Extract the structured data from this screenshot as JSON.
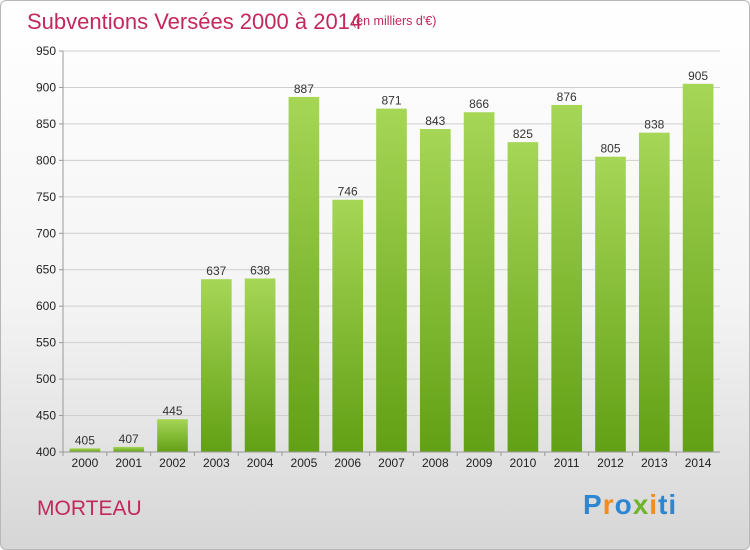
{
  "title": "Subventions Versées 2000 à 2014",
  "subtitle": "(en milliers d'€)",
  "commune": "MORTEAU",
  "brand": "Proxiti",
  "brand_colors": [
    "#2c86d1",
    "#f08d1c",
    "#2c86d1",
    "#6fb52c",
    "#f08d1c",
    "#2c86d1"
  ],
  "colors": {
    "bar_light": "#a6d656",
    "bar_dark": "#62a015",
    "grid": "#cfcfcf",
    "title": "#c4285a"
  },
  "chart_data": {
    "type": "bar",
    "title": "Subventions Versées 2000 à 2014",
    "subtitle": "(en milliers d'€)",
    "xlabel": "",
    "ylabel": "",
    "categories": [
      "2000",
      "2001",
      "2002",
      "2003",
      "2004",
      "2005",
      "2006",
      "2007",
      "2008",
      "2009",
      "2010",
      "2011",
      "2012",
      "2013",
      "2014"
    ],
    "values": [
      405,
      407,
      445,
      637,
      638,
      887,
      746,
      871,
      843,
      866,
      825,
      876,
      805,
      838,
      905
    ],
    "ylim": [
      400,
      950
    ],
    "yticks": [
      400,
      450,
      500,
      550,
      600,
      650,
      700,
      750,
      800,
      850,
      900,
      950
    ],
    "grid": true,
    "data_labels": true
  }
}
